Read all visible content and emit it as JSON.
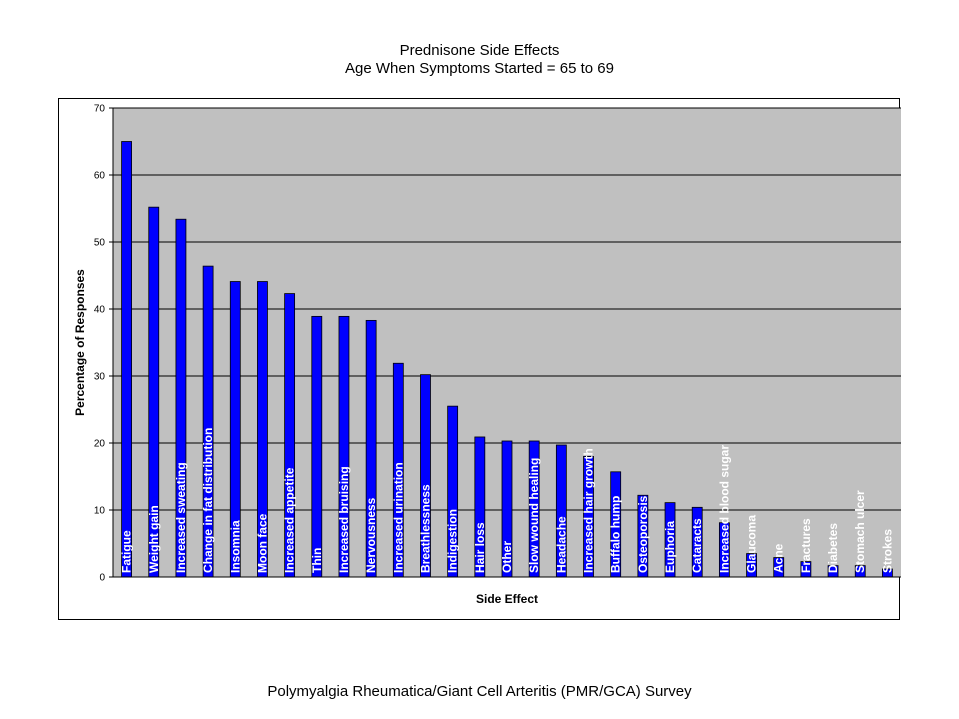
{
  "chart_data": {
    "type": "bar",
    "title": "Prednisone Side Effects",
    "subtitle": "Age When Symptoms Started = 65 to 69",
    "xlabel": "Side Effect",
    "ylabel": "Percentage of Responses",
    "ylim": [
      0,
      70
    ],
    "yticks": [
      0,
      10,
      20,
      30,
      40,
      50,
      60,
      70
    ],
    "grid": true,
    "categories": [
      "Fatigue",
      "Weight gain",
      "Increased sweating",
      "Change in fat distribution",
      "Insomnia",
      "Moon face",
      "Increased appetite",
      "Thin",
      "Increased bruising",
      "Nervousness",
      "Increased urination",
      "Breathlessness",
      "Indigestion",
      "Hair loss",
      "Other",
      "Slow wound healing",
      "Headache",
      "Increased hair growth",
      "Buffalo hump",
      "Osteoporosis",
      "Euphoria",
      "Cataracts",
      "Increased blood sugar",
      "Glaucoma",
      "Acne",
      "Fractures",
      "Diabetes",
      "Stomach ulcer",
      "Strokes"
    ],
    "values": [
      65,
      55.2,
      53.4,
      46.4,
      44.1,
      44.1,
      42.3,
      38.9,
      38.9,
      38.3,
      31.9,
      30.2,
      25.5,
      20.9,
      20.3,
      20.3,
      19.7,
      18,
      15.7,
      12.2,
      11.1,
      10.4,
      8.1,
      3.5,
      2.9,
      2.3,
      1.7,
      1.7,
      1.2
    ],
    "colors": {
      "bar": "#0000ff",
      "bar_edge": "#000000",
      "plot_bg": "#c0c0c0",
      "grid": "#000000"
    }
  },
  "footer": "Polymyalgia Rheumatica/Giant Cell Arteritis (PMR/GCA) Survey"
}
